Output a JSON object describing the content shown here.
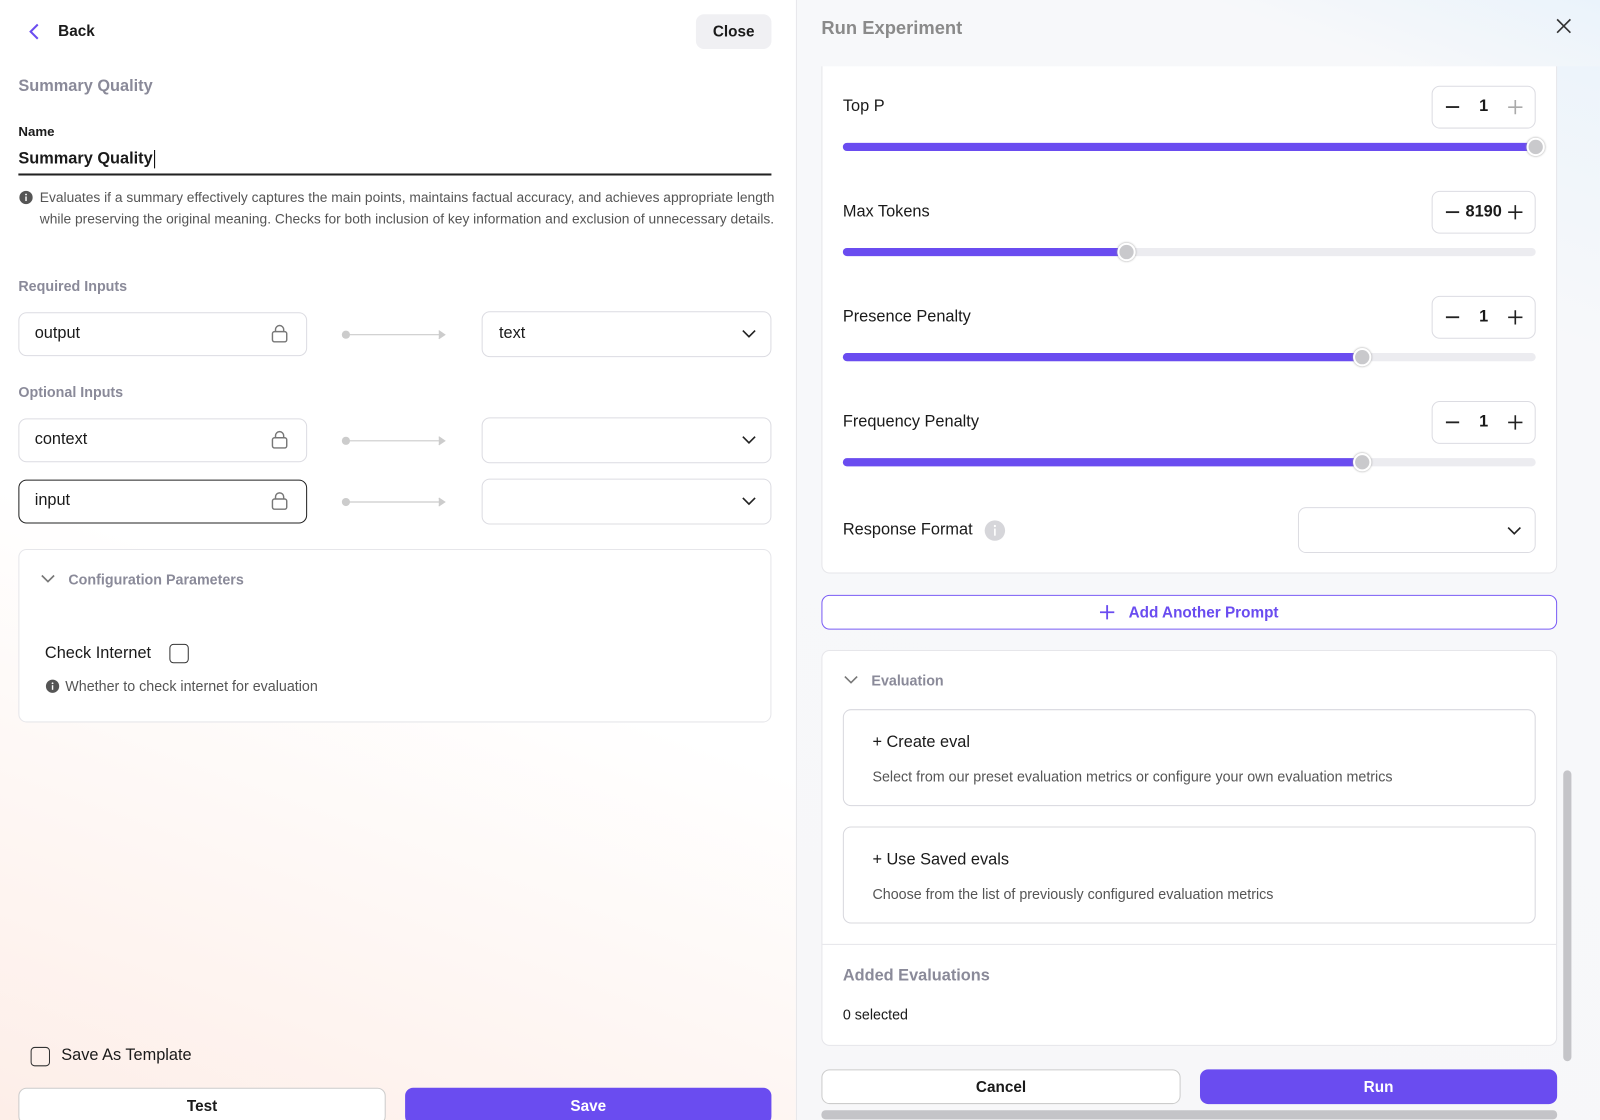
{
  "left": {
    "back": "Back",
    "close": "Close",
    "heading": "Summary Quality",
    "name_label": "Name",
    "name_value": "Summary Quality",
    "description": "Evaluates if a summary effectively captures the main points, maintains factual accuracy, and achieves appropriate length while preserving the original meaning. Checks for both inclusion of key information and exclusion of unnecessary details.",
    "required_inputs": {
      "title": "Required Inputs",
      "rows": [
        {
          "field": "output",
          "mapping": "text"
        }
      ]
    },
    "optional_inputs": {
      "title": "Optional Inputs",
      "rows": [
        {
          "field": "context"
        },
        {
          "field": "input"
        }
      ]
    },
    "config": {
      "title": "Configuration Parameters",
      "check_internet": "Check Internet",
      "hint": "Whether to check internet for evaluation"
    },
    "save_template": "Save As Template",
    "test": "Test",
    "save": "Save"
  },
  "right": {
    "title": "Run Experiment",
    "params": [
      {
        "label": "Top P",
        "value": 1
      },
      {
        "label": "Max Tokens",
        "value": 8190
      },
      {
        "label": "Presence Penalty",
        "value": 1
      },
      {
        "label": "Frequency Penalty",
        "value": 1
      }
    ],
    "response_format": "Response Format",
    "add_prompt": "Add Another Prompt",
    "evaluation": {
      "title": "Evaluation",
      "options": [
        {
          "title": "+ Create eval",
          "description": "Select from our preset evaluation metrics or configure your own evaluation metrics"
        },
        {
          "title": "+ Use Saved evals",
          "description": "Choose from the list of previously configured evaluation metrics"
        }
      ]
    },
    "added": {
      "title": "Added Evaluations",
      "count": "0 selected"
    },
    "cancel": "Cancel",
    "run": "Run"
  }
}
